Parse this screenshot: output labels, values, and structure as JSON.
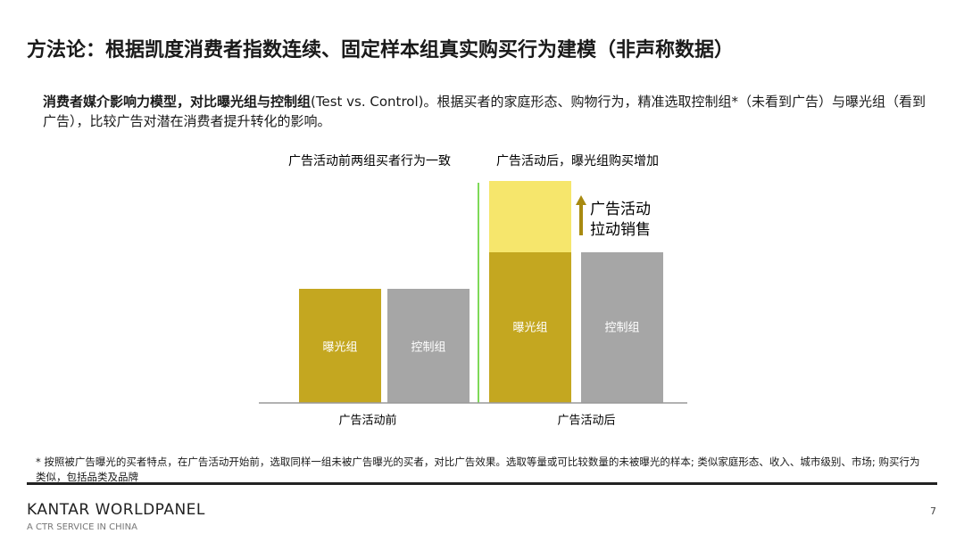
{
  "title": "方法论：根据凯度消费者指数连续、固定样本组真实购买行为建模（非声称数据）",
  "intro": {
    "bold": "消费者媒介影响力模型，对比曝光组与控制组",
    "text": "(Test vs. Control)。根据买者的家庭形态、购物行为，精准选取控制组*（未看到广告）与曝光组（看到广告），比较广告对潜在消费者提升转化的影响。"
  },
  "diagram": {
    "before": {
      "caption": "广告活动前两组买者行为一致",
      "label": "广告活动前",
      "bars": [
        "曝光组",
        "控制组"
      ]
    },
    "after": {
      "caption": "广告活动后，曝光组购买增加",
      "label": "广告活动后",
      "bars": [
        "曝光组",
        "控制组"
      ]
    },
    "callout": [
      "广告活动",
      "拉动销售"
    ]
  },
  "footnote": "* 按照被广告曝光的买者特点，在广告活动开始前，选取同样一组未被广告曝光的买者，对比广告效果。选取等量或可比较数量的未被曝光的样本; 类似家庭形态、收入、城市级别、市场; 购买行为类似，包括品类及品牌",
  "footer": {
    "brand": "KANTAR WORLDPANEL",
    "tagline": "A CTR SERVICE IN CHINA",
    "page": "7"
  }
}
